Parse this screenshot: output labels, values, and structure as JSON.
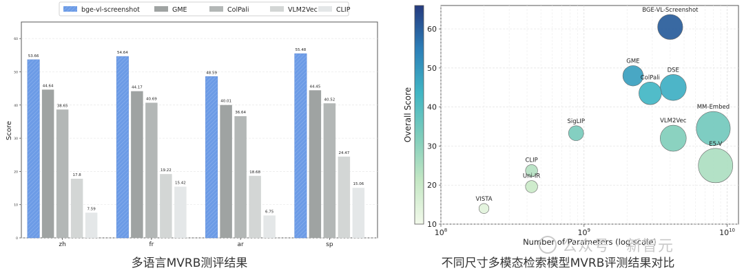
{
  "captions": {
    "left": "多语言MVRB测评结果",
    "right": "不同尺寸多模态检索模型MVRB评测结果对比"
  },
  "watermark": "公众号 · 新智元",
  "colors": {
    "bge-vl-screenshot": "#6c9be6",
    "GME": "#9fa3a2",
    "ColPali": "#b3b7b6",
    "VLM2Vec": "#d3d6d5",
    "CLIP": "#e4e7e8",
    "frame": "#555555",
    "grid": "#e8e8e8"
  },
  "chart_data": [
    {
      "type": "bar",
      "title": "",
      "xlabel": "",
      "ylabel": "Score",
      "ylim": [
        0,
        65
      ],
      "yticks": [
        0,
        10,
        20,
        30,
        40,
        50,
        60
      ],
      "grid": true,
      "legend_position": "top",
      "categories": [
        "zh",
        "fr",
        "ar",
        "sp"
      ],
      "series": [
        {
          "name": "bge-vl-screenshot",
          "values": [
            53.66,
            54.64,
            48.59,
            55.48
          ]
        },
        {
          "name": "GME",
          "values": [
            44.64,
            44.17,
            40.01,
            44.45
          ]
        },
        {
          "name": "ColPali",
          "values": [
            38.65,
            40.69,
            36.64,
            40.52
          ]
        },
        {
          "name": "VLM2Vec",
          "values": [
            17.8,
            19.22,
            18.68,
            24.47
          ]
        },
        {
          "name": "CLIP",
          "values": [
            7.59,
            15.42,
            6.75,
            15.06
          ]
        }
      ]
    },
    {
      "type": "scatter",
      "title": "",
      "xlabel": "Number of Parameters (log scale)",
      "ylabel": "Overall Score",
      "x_scale": "log",
      "xlim": [
        100000000,
        12000000000
      ],
      "ylim": [
        10,
        66
      ],
      "xticks": [
        100000000,
        1000000000,
        10000000000
      ],
      "yticks": [
        10,
        20,
        30,
        40,
        50,
        60
      ],
      "grid": true,
      "colorbar": {
        "min": 10,
        "max": 66,
        "ticks": [
          10,
          20,
          30,
          40,
          50,
          60
        ],
        "position": "left"
      },
      "points": [
        {
          "label": "BGE-VL-Screenshot",
          "x": 4000000000,
          "y": 60.5,
          "size": 3.8
        },
        {
          "label": "GME",
          "x": 2200000000,
          "y": 48.0,
          "size": 2.2
        },
        {
          "label": "DSE",
          "x": 4200000000,
          "y": 45.0,
          "size": 4.2
        },
        {
          "label": "ColPali",
          "x": 2900000000,
          "y": 43.5,
          "size": 2.9
        },
        {
          "label": "MM-Embed",
          "x": 8000000000,
          "y": 34.5,
          "size": 8.0
        },
        {
          "label": "VLM2Vec",
          "x": 4200000000,
          "y": 32.0,
          "size": 4.2
        },
        {
          "label": "SigLIP",
          "x": 880000000,
          "y": 33.3,
          "size": 0.9
        },
        {
          "label": "E5-V",
          "x": 8300000000,
          "y": 25.0,
          "size": 8.3
        },
        {
          "label": "CLIP",
          "x": 430000000,
          "y": 23.7,
          "size": 0.43
        },
        {
          "label": "Uni-IR",
          "x": 430000000,
          "y": 19.6,
          "size": 0.43
        },
        {
          "label": "VISTA",
          "x": 200000000,
          "y": 14.0,
          "size": 0.2
        }
      ]
    }
  ]
}
